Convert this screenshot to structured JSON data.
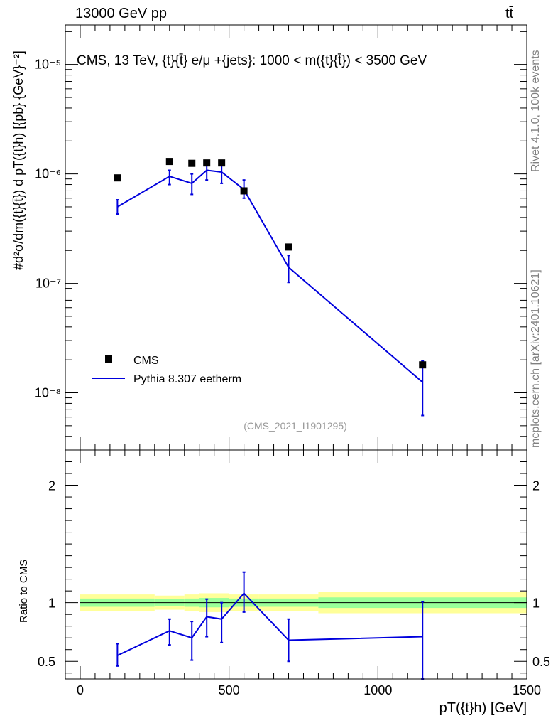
{
  "header": {
    "left": "13000 GeV pp",
    "right": "tt̄"
  },
  "side_notes": {
    "version": "Rivet 4.1.0,  100k events",
    "source": "mcplots.cern.ch [arXiv:2401.10621]"
  },
  "chart_data": [
    {
      "type": "scatter",
      "panel": "main",
      "title": "CMS, 13 TeV, {t}{t̄} e/μ +{jets}: 1000 < m({t}{t̄}) < 3500 GeV",
      "ylabel": "#d²σ/dm({t}{t̄}) d pT({t}h) [{pb} {GeV}⁻²]",
      "xlabel": "",
      "analysis_tag": "(CMS_2021_I1901295)",
      "yscale": "log",
      "xlim": [
        -50,
        1500
      ],
      "ylim": [
        3e-09,
        2.3e-05
      ],
      "ytick_labels": [
        "10⁻⁸",
        "10⁻⁷",
        "10⁻⁶",
        "10⁻⁵"
      ],
      "ytick_values": [
        1e-08,
        1e-07,
        1e-06,
        1e-05
      ],
      "legend": [
        "CMS",
        "Pythia 8.307 eetherm"
      ],
      "legend_position": "lower-left",
      "series": [
        {
          "name": "CMS",
          "color": "#000000",
          "marker": "square",
          "x": [
            125,
            300,
            375,
            425,
            475,
            550,
            700,
            1150
          ],
          "y": [
            9.2e-07,
            1.3e-06,
            1.25e-06,
            1.26e-06,
            1.26e-06,
            7e-07,
            2.15e-07,
            1.8e-08
          ]
        },
        {
          "name": "Pythia 8.307 eetherm",
          "color": "#0000dd",
          "marker": "line",
          "x": [
            125,
            300,
            375,
            425,
            475,
            550,
            700,
            1150
          ],
          "y": [
            5e-07,
            9.5e-07,
            8.2e-07,
            1.08e-06,
            1.04e-06,
            7.2e-07,
            1.4e-07,
            1.25e-08
          ],
          "err_low": [
            4.3e-07,
            8e-07,
            6.5e-07,
            8.8e-07,
            8.2e-07,
            6e-07,
            1.02e-07,
            6.2e-09
          ],
          "err_high": [
            5.8e-07,
            1.08e-06,
            1e-06,
            1.27e-06,
            1.22e-06,
            8.8e-07,
            1.8e-07,
            1.95e-08
          ]
        }
      ]
    },
    {
      "type": "line",
      "panel": "ratio",
      "ylabel": "Ratio to CMS",
      "xlabel": "pT({t}h) [GeV]",
      "xlim": [
        -50,
        1500
      ],
      "ylim": [
        0.35,
        2.3
      ],
      "xtick_labels": [
        "0",
        "500",
        "1000",
        "1500"
      ],
      "xtick_values": [
        0,
        500,
        1000,
        1500
      ],
      "ytick_labels": [
        "0.5",
        "1",
        "2"
      ],
      "ytick_values": [
        0.5,
        1,
        2
      ],
      "reference_line": 1,
      "bands": {
        "bin_edges": [
          0,
          250,
          350,
          400,
          450,
          500,
          600,
          800,
          1500
        ],
        "outer": [
          [
            0.93,
            1.07
          ],
          [
            0.94,
            1.06
          ],
          [
            0.93,
            1.07
          ],
          [
            0.92,
            1.08
          ],
          [
            0.92,
            1.08
          ],
          [
            0.93,
            1.07
          ],
          [
            0.93,
            1.07
          ],
          [
            0.91,
            1.09
          ]
        ],
        "inner": [
          [
            0.965,
            1.035
          ],
          [
            0.97,
            1.03
          ],
          [
            0.965,
            1.035
          ],
          [
            0.96,
            1.04
          ],
          [
            0.96,
            1.04
          ],
          [
            0.965,
            1.035
          ],
          [
            0.965,
            1.035
          ],
          [
            0.955,
            1.045
          ]
        ],
        "outer_color": "#ffff99",
        "inner_color": "#99ff99"
      },
      "series": [
        {
          "name": "Pythia 8.307 eetherm / CMS",
          "color": "#0000dd",
          "x": [
            125,
            300,
            375,
            425,
            475,
            550,
            700,
            1150
          ],
          "y": [
            0.55,
            0.76,
            0.7,
            0.88,
            0.86,
            1.08,
            0.68,
            0.71
          ],
          "err_low": [
            0.46,
            0.64,
            0.51,
            0.71,
            0.66,
            0.92,
            0.5,
            0.35
          ],
          "err_high": [
            0.65,
            0.86,
            0.84,
            1.03,
            1.0,
            1.26,
            0.86,
            1.01
          ]
        }
      ]
    }
  ]
}
